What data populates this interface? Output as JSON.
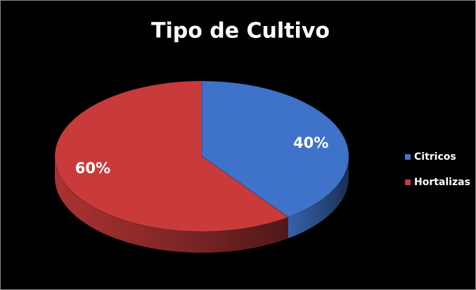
{
  "chart_data": {
    "type": "pie",
    "title": "Tipo de Cultivo",
    "categories": [
      "Citricos",
      "Hortalizas"
    ],
    "values": [
      40,
      60
    ],
    "value_labels": [
      "40%",
      "60%"
    ],
    "colors": [
      "#3f73c9",
      "#c93b3b"
    ],
    "legend": "right"
  }
}
